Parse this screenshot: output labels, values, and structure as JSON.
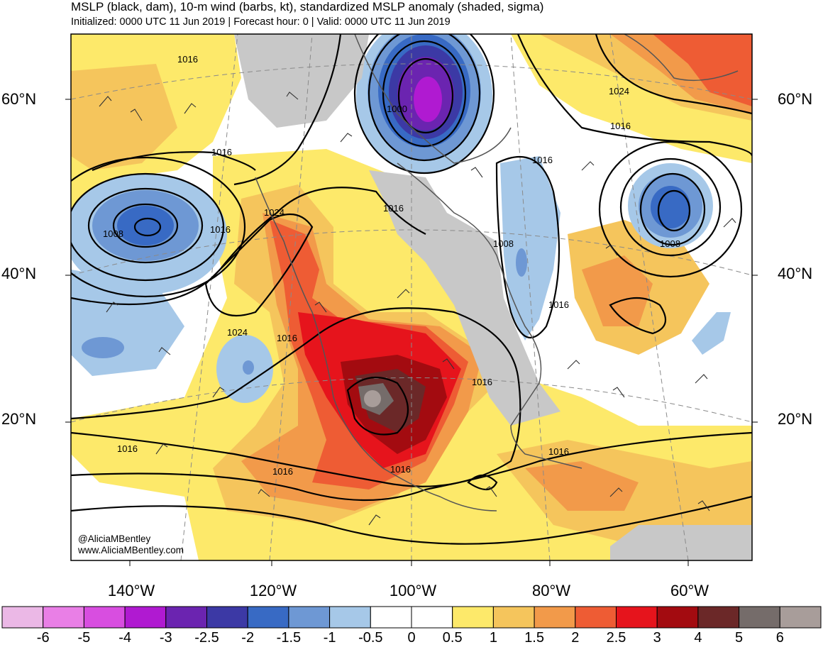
{
  "header": {
    "title": "MSLP (black, dam), 10-m wind (barbs, kt), standardized MSLP anomaly (shaded, sigma)",
    "subtitle": "Initialized: 0000 UTC 11 Jun 2019 | Forecast hour: 0 | Valid: 0000 UTC 11 Jun 2019"
  },
  "map": {
    "lat_labels": {
      "lat60": "60°N",
      "lat40": "40°N",
      "lat20": "20°N"
    },
    "lon_labels": {
      "lon140": "140°W",
      "lon120": "120°W",
      "lon100": "100°W",
      "lon80": "80°W",
      "lon60": "60°W"
    },
    "contour_labels": {
      "c1016_nw": "1016",
      "c1000_hudson": "1000",
      "c1024_ne": "1024",
      "c1016_ne": "1016",
      "c1016_lab": "1016",
      "c1016_grl": "1016",
      "c1024_pnw": "1024",
      "c1008_pac": "1008",
      "c1016_pac": "1016",
      "c1016_pac2": "1016",
      "c1008_atl": "1008",
      "c1008_east": "1008",
      "c1016_east": "1016",
      "c1024_pac_s": "1024",
      "c1016_sw": "1016",
      "c1016_se": "1016",
      "c1016_w": "1016",
      "c1016_s": "1016",
      "c1016_mex": "1016",
      "c1016_car": "1016"
    },
    "credits": {
      "twitter": "@AliciaMBentley",
      "website": "www.AliciaMBentley.com"
    }
  },
  "colorbar": {
    "colors": [
      "#ebb8e6",
      "#e97fe6",
      "#d84ee0",
      "#b01ad1",
      "#6b24b0",
      "#3c39a5",
      "#386ac4",
      "#6e98d4",
      "#a6c8e8",
      "#ffffff",
      "#ffffff",
      "#fde96a",
      "#f5c55c",
      "#f29a4a",
      "#ee5c34",
      "#e6141c",
      "#a30b10",
      "#6b2828",
      "#756c6a",
      "#a89d9a"
    ],
    "ticks": [
      "-6",
      "-5",
      "-4",
      "-3",
      "-2.5",
      "-2",
      "-1.5",
      "-1",
      "-0.5",
      "0",
      "0.5",
      "1",
      "1.5",
      "2",
      "2.5",
      "3",
      "4",
      "5",
      "6"
    ]
  }
}
